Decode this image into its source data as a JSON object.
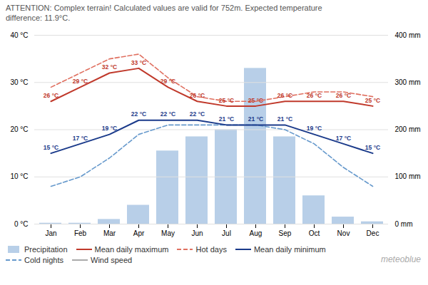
{
  "chart_data": {
    "type": "bar",
    "annotations": [
      "ATTENTION: Complex terrain! Calculated values are valid for 752m. Expected temperature\ndifference: 11.9°C.",
      "meteoblue"
    ],
    "categories": [
      "Jan",
      "Feb",
      "Mar",
      "Apr",
      "May",
      "Jun",
      "Jul",
      "Aug",
      "Sep",
      "Oct",
      "Nov",
      "Dec"
    ],
    "series": [
      {
        "name": "Precipitation",
        "type": "bar",
        "axis": "y2",
        "color": "#b8cfe8",
        "values": [
          2,
          2,
          10,
          40,
          155,
          185,
          200,
          330,
          185,
          60,
          15,
          5
        ]
      },
      {
        "name": "Mean daily maximum",
        "type": "line",
        "line_style": "solid",
        "color": "#c0392b",
        "data_labels": true,
        "values": [
          26,
          29,
          32,
          33,
          29,
          26,
          25,
          25,
          26,
          26,
          26,
          25
        ],
        "value_labels": [
          "26 °C",
          "29 °C",
          "32 °C",
          "33 °C",
          "29 °C",
          "26 °C",
          "25 °C",
          "25 °C",
          "26 °C",
          "26 °C",
          "26 °C",
          "25 °C"
        ]
      },
      {
        "name": "Hot days",
        "type": "line",
        "line_style": "dashed",
        "color": "#e07060",
        "values": [
          29,
          32,
          35,
          36,
          31,
          27,
          26,
          26,
          27,
          28,
          28,
          27
        ]
      },
      {
        "name": "Mean daily minimum",
        "type": "line",
        "line_style": "solid",
        "color": "#1a3a8a",
        "data_labels": true,
        "values": [
          15,
          17,
          19,
          22,
          22,
          22,
          21,
          21,
          21,
          19,
          17,
          15
        ],
        "value_labels": [
          "15 °C",
          "17 °C",
          "19 °C",
          "22 °C",
          "22 °C",
          "22 °C",
          "21 °C",
          "21 °C",
          "21 °C",
          "19 °C",
          "17 °C",
          "15 °C"
        ]
      },
      {
        "name": "Cold nights",
        "type": "line",
        "line_style": "dashed",
        "color": "#6699cc",
        "values": [
          8,
          10,
          14,
          19,
          21,
          21,
          21,
          21,
          20,
          17,
          12,
          8
        ]
      },
      {
        "name": "Wind speed",
        "type": "line",
        "line_style": "solid",
        "color": "#aaaaaa",
        "values": [
          null,
          null,
          null,
          null,
          null,
          null,
          null,
          null,
          null,
          null,
          null,
          null
        ]
      }
    ],
    "ylim": [
      0,
      40
    ],
    "yticks": [
      {
        "value": 0,
        "label": "0 °C"
      },
      {
        "value": 10,
        "label": "10 °C"
      },
      {
        "value": 20,
        "label": "20 °C"
      },
      {
        "value": 30,
        "label": "30 °C"
      },
      {
        "value": 40,
        "label": "40 °C"
      }
    ],
    "y2lim": [
      0,
      400
    ],
    "y2ticks": [
      {
        "value": 0,
        "label": "0 mm"
      },
      {
        "value": 100,
        "label": "100 mm"
      },
      {
        "value": 200,
        "label": "200 mm"
      },
      {
        "value": 300,
        "label": "300 mm"
      },
      {
        "value": 400,
        "label": "400 mm"
      }
    ],
    "grid": true,
    "legend": "bottom"
  }
}
